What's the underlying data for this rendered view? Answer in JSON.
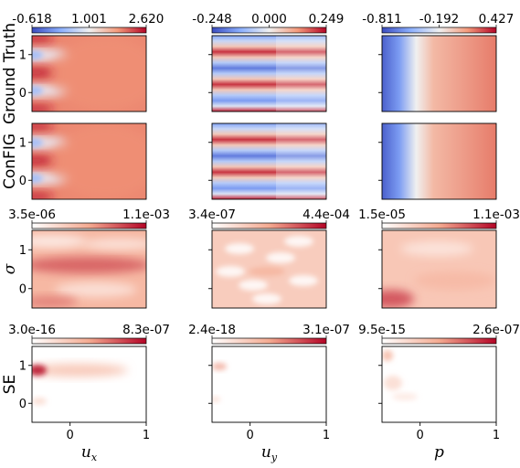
{
  "chart_data": {
    "type": "heatmap",
    "colormap": "coolwarm",
    "columns": [
      {
        "label_base": "u",
        "label_sub": "x"
      },
      {
        "label_base": "u",
        "label_sub": "y"
      },
      {
        "label_base": "p",
        "label_sub": ""
      }
    ],
    "rows": [
      {
        "label": "Ground Truth",
        "colorbars": [
          [
            "-0.618",
            "1.001",
            "2.620"
          ],
          [
            "-0.248",
            "0.000",
            "0.249"
          ],
          [
            "-0.811",
            "-0.192",
            "0.427"
          ]
        ]
      },
      {
        "label": "ConFIG",
        "colorbars": []
      },
      {
        "label": "σ",
        "colorbars": [
          [
            "3.5e-06",
            "1.1e-03"
          ],
          [
            "3.4e-07",
            "4.4e-04"
          ],
          [
            "1.5e-05",
            "1.1e-03"
          ]
        ]
      },
      {
        "label": "SE",
        "colorbars": [
          [
            "3.0e-16",
            "8.3e-07"
          ],
          [
            "2.4e-18",
            "3.1e-07"
          ],
          [
            "9.5e-15",
            "2.6e-07"
          ]
        ]
      }
    ],
    "xticks": [
      "0",
      "1"
    ],
    "yticks": [
      "1",
      "0"
    ],
    "xlim": [
      -0.5,
      1
    ],
    "ylim": [
      -0.5,
      1.5
    ],
    "colors": {
      "low": "#3b4cc0",
      "mid": "#f7f7f7",
      "high": "#b40426"
    }
  }
}
